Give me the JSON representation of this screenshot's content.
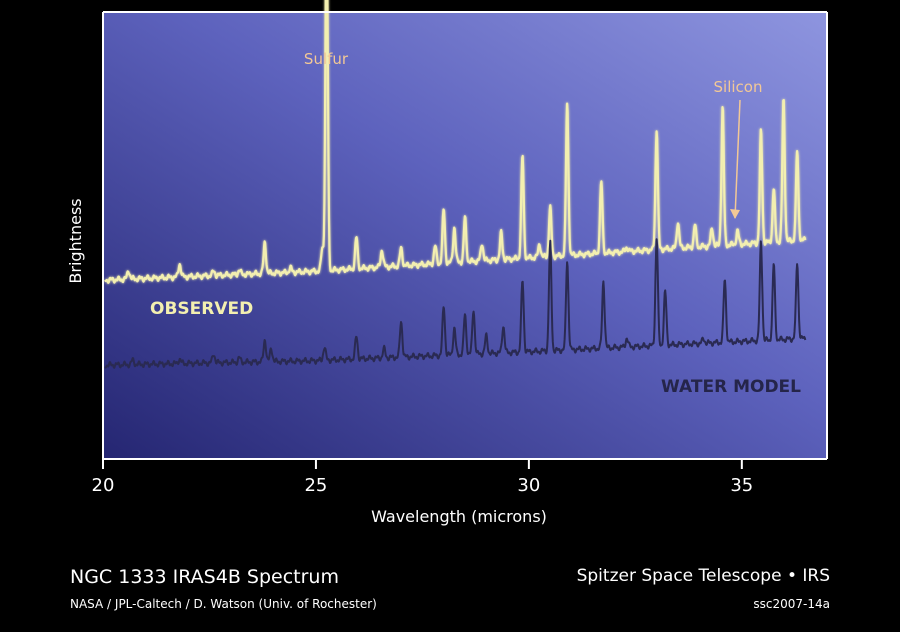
{
  "chart_data": {
    "type": "line",
    "xlabel": "Wavelength (microns)",
    "ylabel": "Brightness",
    "xlim": [
      20,
      37
    ],
    "ylim": [
      0,
      1
    ],
    "xticks": [
      20,
      25,
      30,
      35
    ],
    "grid": false,
    "series": [
      {
        "name": "OBSERVED",
        "color": "#f3efb0",
        "baseline": [
          [
            20,
            0.4
          ],
          [
            25,
            0.42
          ],
          [
            30,
            0.45
          ],
          [
            36.5,
            0.49
          ]
        ],
        "peaks": [
          [
            20.6,
            0.02
          ],
          [
            21.8,
            0.03
          ],
          [
            22.6,
            0.01
          ],
          [
            23.2,
            0.01
          ],
          [
            23.8,
            0.07
          ],
          [
            24.4,
            0.01
          ],
          [
            25.15,
            0.05
          ],
          [
            25.25,
            0.79
          ],
          [
            25.95,
            0.07
          ],
          [
            26.55,
            0.04
          ],
          [
            27.0,
            0.04
          ],
          [
            27.8,
            0.04
          ],
          [
            28.0,
            0.12
          ],
          [
            28.25,
            0.08
          ],
          [
            28.5,
            0.1
          ],
          [
            28.9,
            0.04
          ],
          [
            29.35,
            0.06
          ],
          [
            29.85,
            0.23
          ],
          [
            30.25,
            0.03
          ],
          [
            30.5,
            0.11
          ],
          [
            30.9,
            0.34
          ],
          [
            31.7,
            0.16
          ],
          [
            32.3,
            0.01
          ],
          [
            33.0,
            0.27
          ],
          [
            33.5,
            0.06
          ],
          [
            33.9,
            0.05
          ],
          [
            34.3,
            0.04
          ],
          [
            34.55,
            0.31
          ],
          [
            34.9,
            0.03
          ],
          [
            35.45,
            0.25
          ],
          [
            35.75,
            0.12
          ],
          [
            35.98,
            0.32
          ],
          [
            36.3,
            0.2
          ]
        ]
      },
      {
        "name": "WATER MODEL",
        "color": "#2a2a52",
        "baseline": [
          [
            20,
            0.21
          ],
          [
            25,
            0.22
          ],
          [
            30,
            0.24
          ],
          [
            36.5,
            0.27
          ]
        ],
        "peaks": [
          [
            20.7,
            0.01
          ],
          [
            21.8,
            0.01
          ],
          [
            22.6,
            0.02
          ],
          [
            23.2,
            0.01
          ],
          [
            23.8,
            0.05
          ],
          [
            23.95,
            0.03
          ],
          [
            25.2,
            0.03
          ],
          [
            25.95,
            0.05
          ],
          [
            26.6,
            0.02
          ],
          [
            27.0,
            0.08
          ],
          [
            28.0,
            0.11
          ],
          [
            28.25,
            0.06
          ],
          [
            28.5,
            0.09
          ],
          [
            28.7,
            0.1
          ],
          [
            29.0,
            0.04
          ],
          [
            29.4,
            0.06
          ],
          [
            29.85,
            0.16
          ],
          [
            30.5,
            0.24
          ],
          [
            30.9,
            0.2
          ],
          [
            31.75,
            0.15
          ],
          [
            32.3,
            0.02
          ],
          [
            33.0,
            0.24
          ],
          [
            33.2,
            0.12
          ],
          [
            34.1,
            0.01
          ],
          [
            34.6,
            0.14
          ],
          [
            35.45,
            0.22
          ],
          [
            35.75,
            0.17
          ],
          [
            36.3,
            0.17
          ]
        ]
      }
    ],
    "annotations": [
      {
        "text": "Sulfur",
        "x": 25.25
      },
      {
        "text": "Silicon",
        "x": 34.95
      }
    ]
  },
  "footer": {
    "title": "NGC 1333 IRAS4B Spectrum",
    "credit": "NASA / JPL-Caltech / D. Watson (Univ. of Rochester)",
    "mission": "Spitzer Space Telescope • IRS",
    "image_id": "ssc2007-14a"
  },
  "colors": {
    "background": "#000000",
    "plot_fill_light": "#7f86d6",
    "plot_fill_dark": "#252672",
    "frame": "#ffffff",
    "annotation": "#f2c896"
  }
}
